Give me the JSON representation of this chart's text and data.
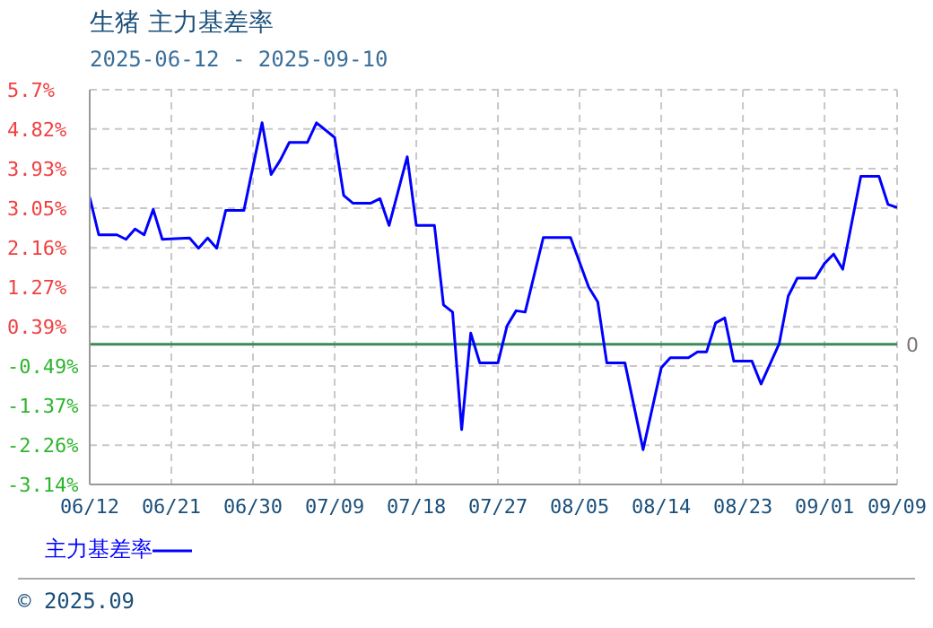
{
  "chart_data": {
    "type": "line",
    "title": "生猪 主力基差率",
    "subtitle": "2025-06-12 - 2025-09-10",
    "x": [
      "2025-06-12",
      "2025-06-13",
      "2025-06-15",
      "2025-06-16",
      "2025-06-17",
      "2025-06-18",
      "2025-06-19",
      "2025-06-20",
      "2025-06-23",
      "2025-06-24",
      "2025-06-25",
      "2025-06-26",
      "2025-06-27",
      "2025-06-29",
      "2025-07-01",
      "2025-07-02",
      "2025-07-03",
      "2025-07-04",
      "2025-07-06",
      "2025-07-07",
      "2025-07-09",
      "2025-07-10",
      "2025-07-11",
      "2025-07-13",
      "2025-07-14",
      "2025-07-15",
      "2025-07-17",
      "2025-07-18",
      "2025-07-20",
      "2025-07-21",
      "2025-07-22",
      "2025-07-23",
      "2025-07-24",
      "2025-07-25",
      "2025-07-27",
      "2025-07-28",
      "2025-07-29",
      "2025-07-30",
      "2025-08-01",
      "2025-08-04",
      "2025-08-06",
      "2025-08-07",
      "2025-08-08",
      "2025-08-10",
      "2025-08-12",
      "2025-08-14",
      "2025-08-15",
      "2025-08-17",
      "2025-08-18",
      "2025-08-19",
      "2025-08-20",
      "2025-08-21",
      "2025-08-22",
      "2025-08-24",
      "2025-08-25",
      "2025-08-27",
      "2025-08-28",
      "2025-08-29",
      "2025-08-31",
      "2025-09-01",
      "2025-09-02",
      "2025-09-03",
      "2025-09-05",
      "2025-09-07",
      "2025-09-08",
      "2025-09-09"
    ],
    "series": [
      {
        "name": "主力基差率",
        "color": "#0000ff",
        "values": [
          3.29,
          2.45,
          2.45,
          2.35,
          2.58,
          2.45,
          3.02,
          2.35,
          2.38,
          2.15,
          2.38,
          2.15,
          3.0,
          3.0,
          4.96,
          3.8,
          4.12,
          4.52,
          4.52,
          4.96,
          4.63,
          3.33,
          3.16,
          3.16,
          3.26,
          2.66,
          4.2,
          2.66,
          2.66,
          0.88,
          0.72,
          -1.91,
          0.25,
          -0.42,
          -0.42,
          0.41,
          0.75,
          0.72,
          2.39,
          2.39,
          1.28,
          0.95,
          -0.42,
          -0.42,
          -2.36,
          -0.53,
          -0.3,
          -0.3,
          -0.17,
          -0.17,
          0.48,
          0.59,
          -0.38,
          -0.38,
          -0.89,
          0.01,
          1.08,
          1.48,
          1.48,
          1.81,
          2.02,
          1.68,
          3.76,
          3.76,
          3.13,
          3.06
        ]
      }
    ],
    "xlim": [
      "2025-06-12",
      "2025-09-09"
    ],
    "xticks": [
      {
        "value": "2025-06-12",
        "label": "06/12"
      },
      {
        "value": "2025-06-21",
        "label": "06/21"
      },
      {
        "value": "2025-06-30",
        "label": "06/30"
      },
      {
        "value": "2025-07-09",
        "label": "07/09"
      },
      {
        "value": "2025-07-18",
        "label": "07/18"
      },
      {
        "value": "2025-07-27",
        "label": "07/27"
      },
      {
        "value": "2025-08-05",
        "label": "08/05"
      },
      {
        "value": "2025-08-14",
        "label": "08/14"
      },
      {
        "value": "2025-08-23",
        "label": "08/23"
      },
      {
        "value": "2025-09-01",
        "label": "09/01"
      },
      {
        "value": "2025-09-09",
        "label": "09/09"
      }
    ],
    "ylim": [
      -3.14,
      5.7
    ],
    "yticks": [
      {
        "value": -3.14,
        "label": "-3.14%"
      },
      {
        "value": -2.26,
        "label": "-2.26%"
      },
      {
        "value": -1.37,
        "label": "-1.37%"
      },
      {
        "value": -0.49,
        "label": "-0.49%"
      },
      {
        "value": 0.39,
        "label": "0.39%"
      },
      {
        "value": 1.27,
        "label": "1.27%"
      },
      {
        "value": 2.16,
        "label": "2.16%"
      },
      {
        "value": 3.05,
        "label": "3.05%"
      },
      {
        "value": 3.93,
        "label": "3.93%"
      },
      {
        "value": 4.82,
        "label": "4.82%"
      },
      {
        "value": 5.7,
        "label": "5.7%"
      }
    ],
    "ref_lines": [
      {
        "axis": "y",
        "value": 0,
        "label": "0",
        "color": "#3a8a5a"
      }
    ],
    "grid": true,
    "legend": "bottom left",
    "marker": "none",
    "line_style": "solid",
    "annotations": [
      "© 2025.09"
    ]
  }
}
